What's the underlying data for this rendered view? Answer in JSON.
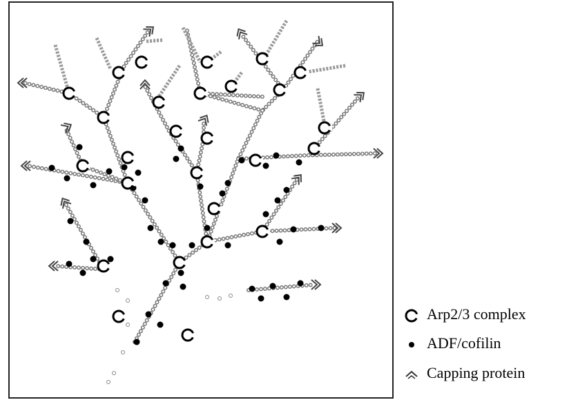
{
  "legend": {
    "items": [
      {
        "label": "Arp2/3 complex"
      },
      {
        "label": "ADF/cofilin"
      },
      {
        "label": "Capping protein"
      }
    ]
  }
}
